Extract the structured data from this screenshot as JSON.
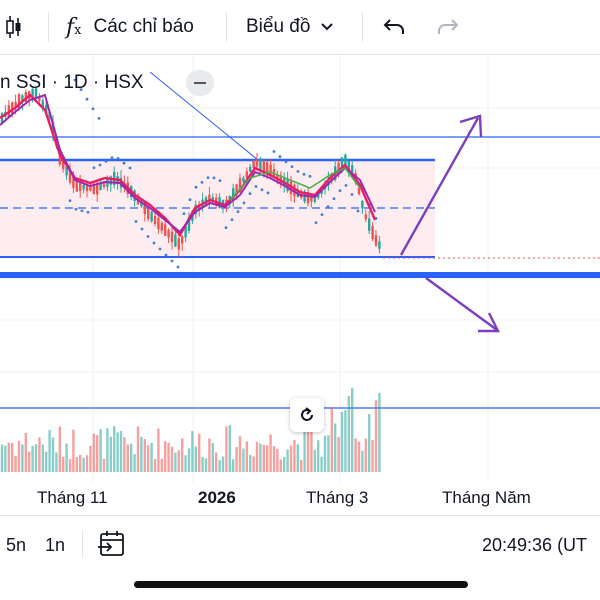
{
  "toolbar": {
    "indicators_label": "Các chỉ báo",
    "chart_type_label": "Biểu đồ"
  },
  "legend": {
    "symbol_text": "n SSI · 1D · HSX"
  },
  "time_axis": {
    "labels": [
      "Tháng 11",
      "2026",
      "Tháng 3",
      "Tháng Năm"
    ]
  },
  "bottom_bar": {
    "range_5y": "5n",
    "range_1y": "1n",
    "clock": "20:49:36 (UT"
  },
  "colors": {
    "up": "#26a69a",
    "down": "#ef5350",
    "level_line": "#2962ff",
    "arrow": "#7b3fbf",
    "zone_fill": "#fde8ec"
  }
}
